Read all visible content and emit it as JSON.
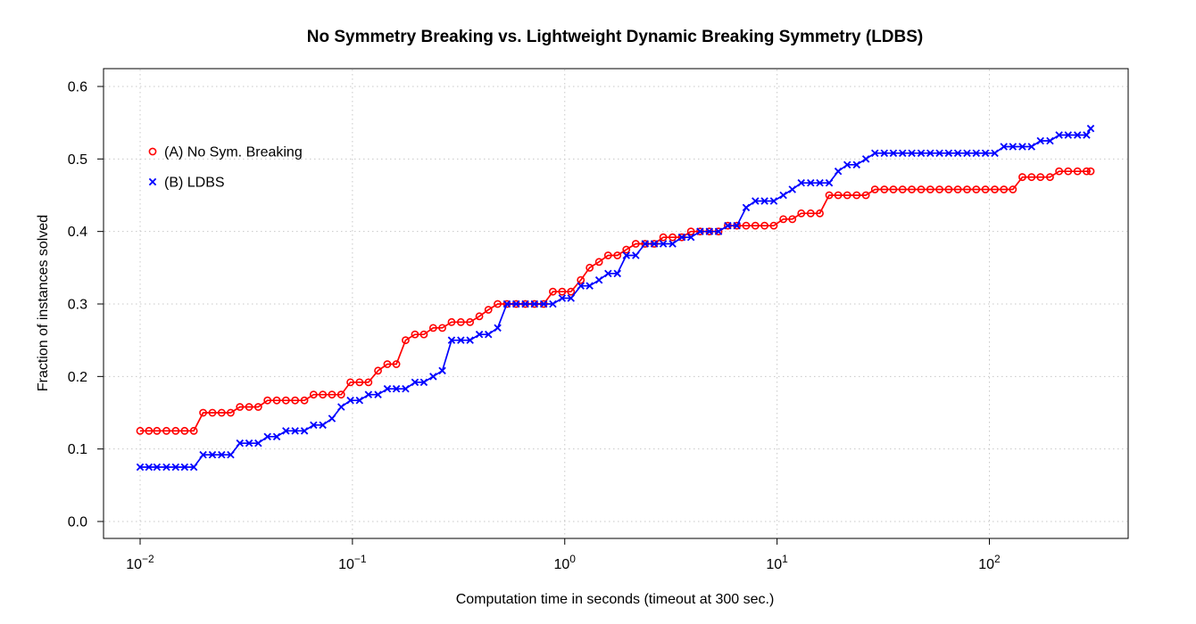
{
  "chart_data": {
    "type": "line",
    "title": "No Symmetry Breaking vs. Lightweight Dynamic Breaking Symmetry (LDBS)",
    "xlabel": "Computation time in seconds (timeout at 300 sec.)",
    "ylabel": "Fraction of instances solved",
    "x_scale": "log10",
    "xlim": [
      0.01,
      300
    ],
    "ylim": [
      0,
      0.6
    ],
    "grid": true,
    "legend_position": "top-left",
    "x_ticks": [
      {
        "value": 0.01,
        "base": "10",
        "exp": "−2"
      },
      {
        "value": 0.1,
        "base": "10",
        "exp": "−1"
      },
      {
        "value": 1,
        "base": "10",
        "exp": "0"
      },
      {
        "value": 10,
        "base": "10",
        "exp": "1"
      },
      {
        "value": 100,
        "base": "10",
        "exp": "2"
      }
    ],
    "y_ticks": [
      "0.0",
      "0.1",
      "0.2",
      "0.3",
      "0.4",
      "0.5",
      "0.6"
    ],
    "series": [
      {
        "name": "(A) No Sym. Breaking",
        "color": "#ff0000",
        "marker": "circle",
        "x": [
          0.01,
          0.011,
          0.012,
          0.0133,
          0.0147,
          0.0162,
          0.0179,
          0.0198,
          0.0219,
          0.0242,
          0.0267,
          0.0295,
          0.0326,
          0.036,
          0.0398,
          0.044,
          0.0486,
          0.0537,
          0.0594,
          0.0656,
          0.0725,
          0.0801,
          0.0885,
          0.0978,
          0.108,
          0.119,
          0.132,
          0.146,
          0.161,
          0.178,
          0.197,
          0.217,
          0.24,
          0.265,
          0.293,
          0.324,
          0.358,
          0.396,
          0.437,
          0.483,
          0.534,
          0.59,
          0.652,
          0.72,
          0.796,
          0.879,
          0.972,
          1.07,
          1.19,
          1.31,
          1.45,
          1.6,
          1.77,
          1.95,
          2.16,
          2.39,
          2.64,
          2.91,
          3.22,
          3.56,
          3.93,
          4.34,
          4.8,
          5.3,
          5.86,
          6.47,
          7.15,
          7.9,
          8.73,
          9.65,
          10.7,
          11.8,
          13.0,
          14.4,
          15.9,
          17.6,
          19.4,
          21.4,
          23.7,
          26.2,
          28.9,
          32.0,
          35.3,
          39.0,
          43.1,
          47.7,
          52.7,
          58.2,
          64.3,
          71.0,
          78.5,
          86.7,
          95.8,
          106,
          117,
          129,
          143,
          158,
          174,
          193,
          213,
          235,
          260,
          287,
          300
        ],
        "y": [
          0.125,
          0.125,
          0.125,
          0.125,
          0.125,
          0.125,
          0.125,
          0.15,
          0.15,
          0.15,
          0.15,
          0.158,
          0.158,
          0.158,
          0.167,
          0.167,
          0.167,
          0.167,
          0.167,
          0.175,
          0.175,
          0.175,
          0.175,
          0.192,
          0.192,
          0.192,
          0.208,
          0.217,
          0.217,
          0.25,
          0.258,
          0.258,
          0.267,
          0.267,
          0.275,
          0.275,
          0.275,
          0.283,
          0.292,
          0.3,
          0.3,
          0.3,
          0.3,
          0.3,
          0.3,
          0.317,
          0.317,
          0.317,
          0.333,
          0.35,
          0.358,
          0.367,
          0.367,
          0.375,
          0.383,
          0.383,
          0.383,
          0.392,
          0.392,
          0.392,
          0.4,
          0.4,
          0.4,
          0.4,
          0.408,
          0.408,
          0.408,
          0.408,
          0.408,
          0.408,
          0.417,
          0.417,
          0.425,
          0.425,
          0.425,
          0.45,
          0.45,
          0.45,
          0.45,
          0.45,
          0.458,
          0.458,
          0.458,
          0.458,
          0.458,
          0.458,
          0.458,
          0.458,
          0.458,
          0.458,
          0.458,
          0.458,
          0.458,
          0.458,
          0.458,
          0.458,
          0.475,
          0.475,
          0.475,
          0.475,
          0.483,
          0.483,
          0.483,
          0.483,
          0.483
        ]
      },
      {
        "name": "(B) LDBS",
        "color": "#0000ff",
        "marker": "cross",
        "x": [
          0.01,
          0.011,
          0.012,
          0.0133,
          0.0147,
          0.0162,
          0.0179,
          0.0198,
          0.0219,
          0.0242,
          0.0267,
          0.0295,
          0.0326,
          0.036,
          0.0398,
          0.044,
          0.0486,
          0.0537,
          0.0594,
          0.0656,
          0.0725,
          0.0801,
          0.0885,
          0.0978,
          0.108,
          0.119,
          0.132,
          0.146,
          0.161,
          0.178,
          0.197,
          0.217,
          0.24,
          0.265,
          0.293,
          0.324,
          0.358,
          0.396,
          0.437,
          0.483,
          0.534,
          0.59,
          0.652,
          0.72,
          0.796,
          0.879,
          0.972,
          1.07,
          1.19,
          1.31,
          1.45,
          1.6,
          1.77,
          1.95,
          2.16,
          2.39,
          2.64,
          2.91,
          3.22,
          3.56,
          3.93,
          4.34,
          4.8,
          5.3,
          5.86,
          6.47,
          7.15,
          7.9,
          8.73,
          9.65,
          10.7,
          11.8,
          13.0,
          14.4,
          15.9,
          17.6,
          19.4,
          21.4,
          23.7,
          26.2,
          28.9,
          32.0,
          35.3,
          39.0,
          43.1,
          47.7,
          52.7,
          58.2,
          64.3,
          71.0,
          78.5,
          86.7,
          95.8,
          106,
          117,
          129,
          143,
          158,
          174,
          193,
          213,
          235,
          260,
          287,
          300
        ],
        "y": [
          0.075,
          0.075,
          0.075,
          0.075,
          0.075,
          0.075,
          0.075,
          0.092,
          0.092,
          0.092,
          0.092,
          0.108,
          0.108,
          0.108,
          0.117,
          0.117,
          0.125,
          0.125,
          0.125,
          0.133,
          0.133,
          0.142,
          0.158,
          0.167,
          0.167,
          0.175,
          0.175,
          0.183,
          0.183,
          0.183,
          0.192,
          0.192,
          0.2,
          0.208,
          0.25,
          0.25,
          0.25,
          0.258,
          0.258,
          0.267,
          0.3,
          0.3,
          0.3,
          0.3,
          0.3,
          0.3,
          0.308,
          0.308,
          0.325,
          0.325,
          0.333,
          0.342,
          0.342,
          0.367,
          0.367,
          0.383,
          0.383,
          0.383,
          0.383,
          0.392,
          0.392,
          0.4,
          0.4,
          0.4,
          0.408,
          0.408,
          0.433,
          0.442,
          0.442,
          0.442,
          0.45,
          0.458,
          0.467,
          0.467,
          0.467,
          0.467,
          0.483,
          0.492,
          0.492,
          0.5,
          0.508,
          0.508,
          0.508,
          0.508,
          0.508,
          0.508,
          0.508,
          0.508,
          0.508,
          0.508,
          0.508,
          0.508,
          0.508,
          0.508,
          0.517,
          0.517,
          0.517,
          0.517,
          0.525,
          0.525,
          0.533,
          0.533,
          0.533,
          0.533,
          0.542
        ]
      }
    ]
  }
}
